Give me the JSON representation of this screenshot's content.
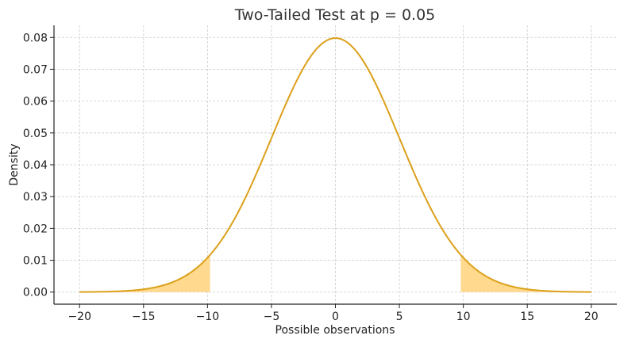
{
  "chart_data": {
    "type": "area",
    "title": "Two-Tailed Test at p = 0.05",
    "xlabel": "Possible observations",
    "ylabel": "Density",
    "xlim": [
      -22,
      22
    ],
    "ylim": [
      -0.0038,
      0.0838
    ],
    "x_ticks": [
      -20,
      -15,
      -10,
      -5,
      0,
      5,
      10,
      15,
      20
    ],
    "x_tick_labels": [
      "−20",
      "−15",
      "−10",
      "−5",
      "0",
      "5",
      "10",
      "15",
      "20"
    ],
    "y_ticks": [
      0.0,
      0.01,
      0.02,
      0.03,
      0.04,
      0.05,
      0.06,
      0.07,
      0.08
    ],
    "y_tick_labels": [
      "0.00",
      "0.01",
      "0.02",
      "0.03",
      "0.04",
      "0.05",
      "0.06",
      "0.07",
      "0.08"
    ],
    "grid": true,
    "series": [
      {
        "curve": "normal",
        "mean": 0,
        "sd": 5,
        "x_range": [
          -20,
          20
        ],
        "color": "#dca01a"
      }
    ],
    "shaded_regions": [
      {
        "x_range": [
          -20,
          -9.8
        ],
        "color": "#ffd98e"
      },
      {
        "x_range": [
          9.8,
          20
        ],
        "color": "#ffd98e"
      }
    ]
  }
}
